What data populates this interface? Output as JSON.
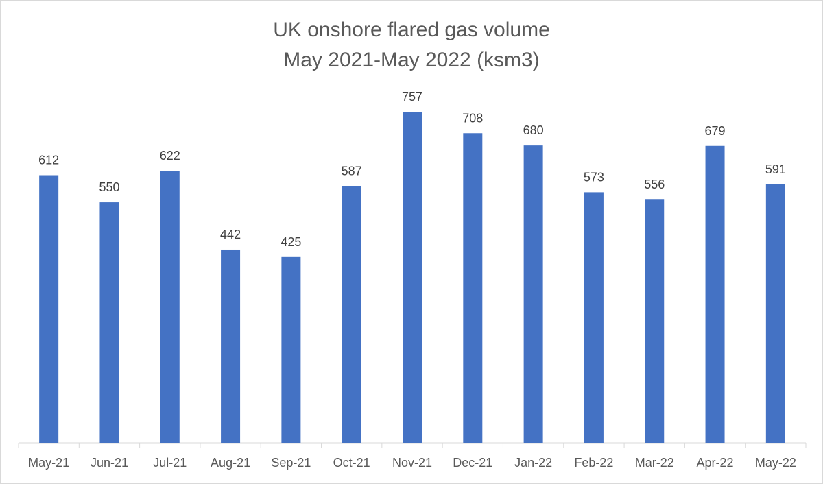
{
  "chart_data": {
    "type": "bar",
    "title": [
      "UK onshore flared gas volume",
      "May 2021-May 2022 (ksm3)"
    ],
    "categories": [
      "May-21",
      "Jun-21",
      "Jul-21",
      "Aug-21",
      "Sep-21",
      "Oct-21",
      "Nov-21",
      "Dec-21",
      "Jan-22",
      "Feb-22",
      "Mar-22",
      "Apr-22",
      "May-22"
    ],
    "values": [
      612,
      550,
      622,
      442,
      425,
      587,
      757,
      708,
      680,
      573,
      556,
      679,
      591
    ],
    "xlabel": "",
    "ylabel": "",
    "ylim": [
      0,
      757
    ],
    "grid": false,
    "legend": "none",
    "bar_color": "#4472C4",
    "data_labels": true
  }
}
